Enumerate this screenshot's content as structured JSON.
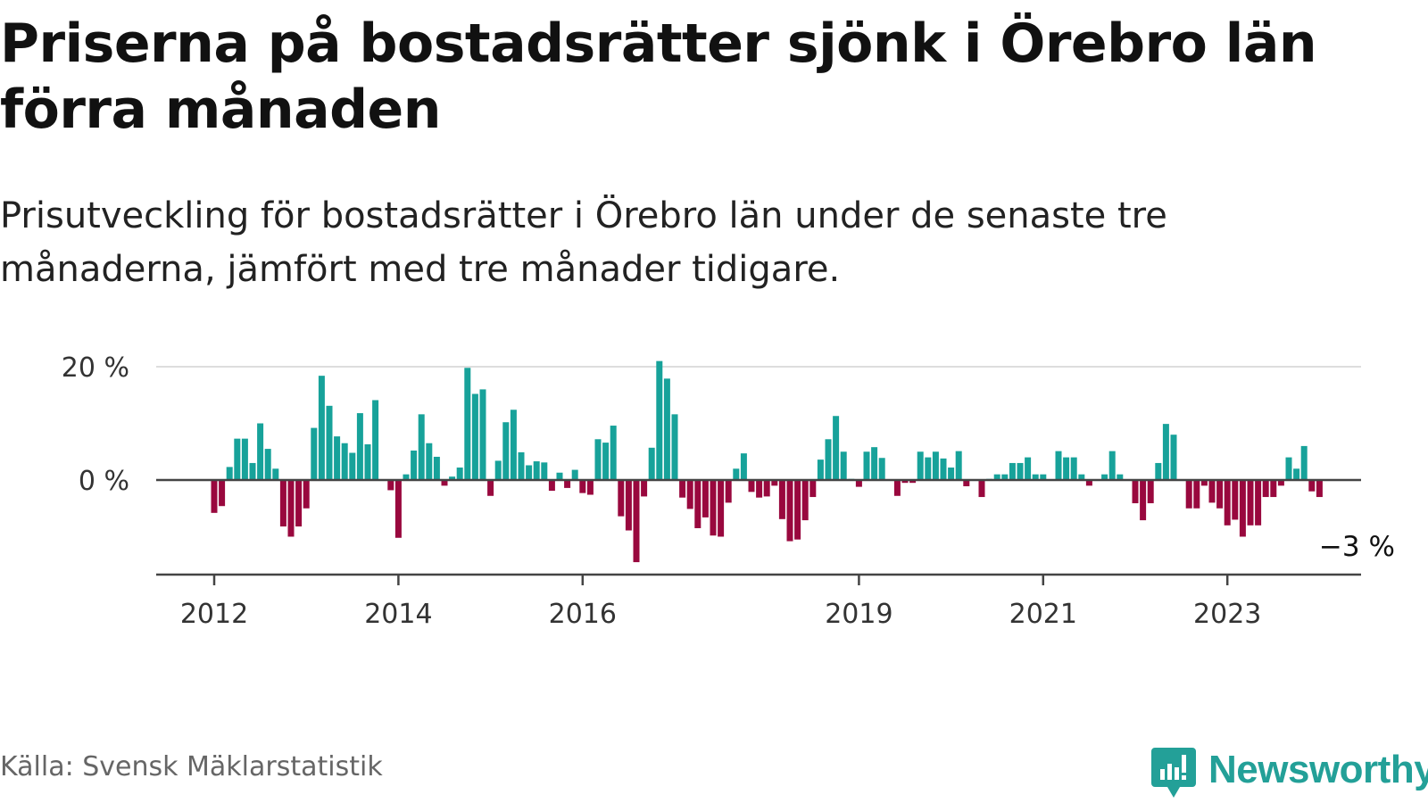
{
  "title": "Priserna på bostadsrätter sjönk i Örebro län förra månaden",
  "subtitle": "Prisutveckling för bostadsrätter i Örebro län under de senaste tre månaderna, jämfört med tre månader tidigare.",
  "source": "Källa: Svensk Mäklarstatistik",
  "brand": {
    "name": "Newsworthy",
    "icon": "newsworthy-bar-chart-logo-icon",
    "color": "#23a098"
  },
  "colors": {
    "positive": "#17a29a",
    "negative": "#99083e",
    "zero_line": "#444444",
    "grid": "#dddddd",
    "axis": "#444444"
  },
  "chart_data": {
    "type": "bar",
    "title": "",
    "xlabel": "",
    "ylabel": "",
    "unit": "%",
    "ylim": [
      -17,
      22
    ],
    "y_ticks": [
      {
        "value": 0,
        "label": "0 %"
      },
      {
        "value": 20,
        "label": "20 %"
      }
    ],
    "x_ticks": [
      {
        "label": "2012",
        "date": "2012-01"
      },
      {
        "label": "2014",
        "date": "2014-01"
      },
      {
        "label": "2016",
        "date": "2016-01"
      },
      {
        "label": "2019",
        "date": "2019-01"
      },
      {
        "label": "2021",
        "date": "2021-01"
      },
      {
        "label": "2023",
        "date": "2023-01"
      }
    ],
    "grid": "horizontal",
    "annotation": {
      "text": "−3 %",
      "date": "2024-01",
      "value": -3
    },
    "x": [
      "2012-01",
      "2012-02",
      "2012-03",
      "2012-04",
      "2012-05",
      "2012-06",
      "2012-07",
      "2012-08",
      "2012-09",
      "2012-10",
      "2012-11",
      "2012-12",
      "2013-01",
      "2013-02",
      "2013-03",
      "2013-04",
      "2013-05",
      "2013-06",
      "2013-07",
      "2013-08",
      "2013-09",
      "2013-10",
      "2013-11",
      "2013-12",
      "2014-01",
      "2014-02",
      "2014-03",
      "2014-04",
      "2014-05",
      "2014-06",
      "2014-07",
      "2014-08",
      "2014-09",
      "2014-10",
      "2014-11",
      "2014-12",
      "2015-01",
      "2015-02",
      "2015-03",
      "2015-04",
      "2015-05",
      "2015-06",
      "2015-07",
      "2015-08",
      "2015-09",
      "2015-10",
      "2015-11",
      "2015-12",
      "2016-01",
      "2016-02",
      "2016-03",
      "2016-04",
      "2016-05",
      "2016-06",
      "2016-07",
      "2016-08",
      "2016-09",
      "2016-10",
      "2016-11",
      "2016-12",
      "2017-01",
      "2017-02",
      "2017-03",
      "2017-04",
      "2017-05",
      "2017-06",
      "2017-07",
      "2017-08",
      "2017-09",
      "2017-10",
      "2017-11",
      "2017-12",
      "2018-01",
      "2018-02",
      "2018-03",
      "2018-04",
      "2018-05",
      "2018-06",
      "2018-07",
      "2018-08",
      "2018-09",
      "2018-10",
      "2018-11",
      "2018-12",
      "2019-01",
      "2019-02",
      "2019-03",
      "2019-04",
      "2019-05",
      "2019-06",
      "2019-07",
      "2019-08",
      "2019-09",
      "2019-10",
      "2019-11",
      "2019-12",
      "2020-01",
      "2020-02",
      "2020-03",
      "2020-04",
      "2020-05",
      "2020-06",
      "2020-07",
      "2020-08",
      "2020-09",
      "2020-10",
      "2020-11",
      "2020-12",
      "2021-01",
      "2021-02",
      "2021-03",
      "2021-04",
      "2021-05",
      "2021-06",
      "2021-07",
      "2021-08",
      "2021-09",
      "2021-10",
      "2021-11",
      "2021-12",
      "2022-01",
      "2022-02",
      "2022-03",
      "2022-04",
      "2022-05",
      "2022-06",
      "2022-07",
      "2022-08",
      "2022-09",
      "2022-10",
      "2022-11",
      "2022-12",
      "2023-01",
      "2023-02",
      "2023-03",
      "2023-04",
      "2023-05",
      "2023-06",
      "2023-07",
      "2023-08",
      "2023-09",
      "2023-10",
      "2023-11",
      "2023-12",
      "2024-01"
    ],
    "values": [
      -5.8,
      -4.6,
      2.3,
      7.3,
      7.3,
      3.0,
      10.0,
      5.5,
      2.0,
      -8.2,
      -10.0,
      -8.2,
      -5.0,
      9.2,
      18.4,
      13.1,
      7.7,
      6.5,
      4.8,
      11.8,
      6.3,
      14.1,
      0.0,
      -1.8,
      -10.2,
      1.0,
      5.2,
      11.6,
      6.5,
      4.1,
      -1.0,
      0.6,
      2.2,
      19.8,
      15.2,
      16.0,
      -2.8,
      3.4,
      10.2,
      12.4,
      4.9,
      2.6,
      3.3,
      3.1,
      -1.9,
      1.3,
      -1.4,
      1.8,
      -2.3,
      -2.6,
      7.2,
      6.6,
      9.6,
      -6.4,
      -8.9,
      -14.5,
      -2.9,
      5.7,
      21.0,
      17.9,
      11.6,
      -3.1,
      -5.1,
      -8.5,
      -6.6,
      -9.8,
      -10.0,
      -4.0,
      2.0,
      4.7,
      -2.1,
      -3.1,
      -2.9,
      -1.0,
      -6.9,
      -10.8,
      -10.5,
      -7.1,
      -3.0,
      3.6,
      7.2,
      11.3,
      5.0,
      0.2,
      -1.2,
      5.0,
      5.8,
      3.9,
      0.0,
      -2.8,
      -0.5,
      -0.5,
      5.0,
      4.0,
      5.0,
      3.8,
      2.2,
      5.1,
      -1.1,
      0.0,
      -3.0,
      0.2,
      1.0,
      1.0,
      3.0,
      3.0,
      4.0,
      1.0,
      1.0,
      0.0,
      5.1,
      4.0,
      4.0,
      1.0,
      -1.0,
      0.0,
      1.0,
      5.1,
      1.0,
      0.0,
      -4.1,
      -7.1,
      -4.1,
      3.0,
      9.9,
      8.0,
      0.0,
      -5.0,
      -5.0,
      -1.0,
      -4.0,
      -5.0,
      -8.0,
      -7.0,
      -10.0,
      -8.0,
      -8.0,
      -3.0,
      -3.0,
      -1.0,
      4.0,
      2.0,
      6.0,
      -2.0,
      -3.0
    ]
  }
}
